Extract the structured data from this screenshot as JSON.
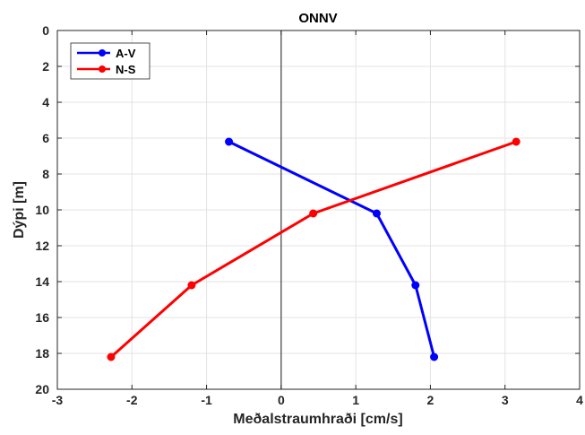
{
  "chart_data": {
    "type": "line",
    "title": "ONNV",
    "xlabel": "Meðalstraumhraði [cm/s]",
    "ylabel": "Dýpi [m]",
    "xlim": [
      -3,
      4
    ],
    "ylim": [
      0,
      20
    ],
    "y_reversed": true,
    "xticks": [
      "-3",
      "-2",
      "-1",
      "0",
      "1",
      "2",
      "3",
      "4"
    ],
    "yticks": [
      "0",
      "2",
      "4",
      "6",
      "8",
      "10",
      "12",
      "14",
      "16",
      "18",
      "20"
    ],
    "grid": true,
    "legend_position": "top-left",
    "zero_line": 0,
    "series": [
      {
        "name": "A-V",
        "color": "#0000ff",
        "x": [
          -0.7,
          1.28,
          1.8,
          2.05
        ],
        "y": [
          6.2,
          10.2,
          14.2,
          18.2
        ]
      },
      {
        "name": "N-S",
        "color": "#ff0000",
        "x": [
          3.15,
          0.43,
          -1.2,
          -2.28
        ],
        "y": [
          6.2,
          10.2,
          14.2,
          18.2
        ]
      }
    ]
  }
}
